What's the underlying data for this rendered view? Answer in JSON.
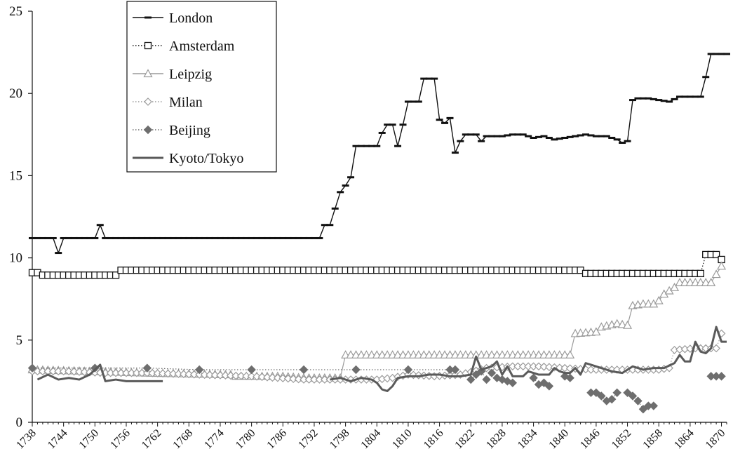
{
  "chart_data": {
    "type": "line",
    "title": "",
    "xlabel": "",
    "ylabel": "",
    "xlim": [
      1738,
      1871
    ],
    "ylim": [
      0,
      25
    ],
    "y_ticks": [
      0,
      5,
      10,
      15,
      20,
      25
    ],
    "x_ticks": [
      1738,
      1744,
      1750,
      1756,
      1762,
      1768,
      1774,
      1780,
      1786,
      1792,
      1798,
      1804,
      1810,
      1816,
      1822,
      1828,
      1834,
      1840,
      1846,
      1852,
      1858,
      1864,
      1870
    ],
    "grid": false,
    "legend_position": "top-left",
    "series": [
      {
        "name": "London",
        "color": "#111111",
        "dash": "solid",
        "marker": "dash",
        "data": [
          [
            1738,
            11.2
          ],
          [
            1742,
            11.2
          ],
          [
            1743,
            10.3
          ],
          [
            1744,
            11.2
          ],
          [
            1750,
            11.2
          ],
          [
            1751,
            12.0
          ],
          [
            1752,
            11.2
          ],
          [
            1770,
            11.2
          ],
          [
            1780,
            11.2
          ],
          [
            1790,
            11.2
          ],
          [
            1793,
            11.2
          ],
          [
            1794,
            12.0
          ],
          [
            1795,
            12.0
          ],
          [
            1796,
            13.0
          ],
          [
            1797,
            14.0
          ],
          [
            1798,
            14.4
          ],
          [
            1799,
            14.9
          ],
          [
            1800,
            16.8
          ],
          [
            1801,
            16.8
          ],
          [
            1802,
            16.8
          ],
          [
            1803,
            16.8
          ],
          [
            1804,
            16.8
          ],
          [
            1805,
            17.6
          ],
          [
            1806,
            18.1
          ],
          [
            1807,
            18.1
          ],
          [
            1808,
            16.8
          ],
          [
            1809,
            18.1
          ],
          [
            1810,
            19.5
          ],
          [
            1811,
            19.5
          ],
          [
            1812,
            19.5
          ],
          [
            1813,
            20.9
          ],
          [
            1814,
            20.9
          ],
          [
            1815,
            20.9
          ],
          [
            1816,
            18.4
          ],
          [
            1817,
            18.2
          ],
          [
            1818,
            18.5
          ],
          [
            1819,
            16.4
          ],
          [
            1820,
            17.1
          ],
          [
            1821,
            17.5
          ],
          [
            1822,
            17.5
          ],
          [
            1823,
            17.5
          ],
          [
            1824,
            17.1
          ],
          [
            1825,
            17.4
          ],
          [
            1826,
            17.4
          ],
          [
            1828,
            17.4
          ],
          [
            1830,
            17.5
          ],
          [
            1832,
            17.5
          ],
          [
            1834,
            17.3
          ],
          [
            1836,
            17.4
          ],
          [
            1838,
            17.2
          ],
          [
            1840,
            17.3
          ],
          [
            1842,
            17.4
          ],
          [
            1844,
            17.5
          ],
          [
            1846,
            17.4
          ],
          [
            1848,
            17.4
          ],
          [
            1850,
            17.2
          ],
          [
            1851,
            17.0
          ],
          [
            1852,
            17.1
          ],
          [
            1853,
            19.6
          ],
          [
            1854,
            19.7
          ],
          [
            1856,
            19.7
          ],
          [
            1858,
            19.6
          ],
          [
            1860,
            19.5
          ],
          [
            1862,
            19.8
          ],
          [
            1864,
            19.8
          ],
          [
            1866,
            19.8
          ],
          [
            1867,
            21.0
          ],
          [
            1868,
            22.4
          ],
          [
            1871,
            22.4
          ]
        ]
      },
      {
        "name": "Amsterdam",
        "color": "#111111",
        "dash": "dotted",
        "marker": "square-open",
        "data": [
          [
            1738,
            9.1
          ],
          [
            1739,
            9.1
          ],
          [
            1740,
            8.95
          ],
          [
            1747,
            8.95
          ],
          [
            1754,
            8.95
          ],
          [
            1755,
            9.25
          ],
          [
            1770,
            9.25
          ],
          [
            1790,
            9.25
          ],
          [
            1810,
            9.25
          ],
          [
            1830,
            9.25
          ],
          [
            1843,
            9.25
          ],
          [
            1844,
            9.05
          ],
          [
            1855,
            9.05
          ],
          [
            1866,
            9.05
          ],
          [
            1867,
            10.2
          ],
          [
            1869,
            10.2
          ],
          [
            1870,
            9.9
          ]
        ]
      },
      {
        "name": "Leipzig",
        "color": "#9a9a9a",
        "dash": "solid",
        "marker": "triangle-open",
        "data": [
          [
            1738,
            3.2
          ],
          [
            1750,
            3.1
          ],
          [
            1760,
            3.0
          ],
          [
            1776,
            2.9
          ],
          [
            1777,
            2.8
          ],
          [
            1786,
            2.8
          ],
          [
            1790,
            2.7
          ],
          [
            1797,
            2.7
          ],
          [
            1798,
            4.1
          ],
          [
            1810,
            4.1
          ],
          [
            1820,
            4.1
          ],
          [
            1830,
            4.1
          ],
          [
            1841,
            4.1
          ],
          [
            1842,
            5.4
          ],
          [
            1846,
            5.5
          ],
          [
            1847,
            5.8
          ],
          [
            1850,
            6.0
          ],
          [
            1852,
            5.9
          ],
          [
            1853,
            7.1
          ],
          [
            1855,
            7.2
          ],
          [
            1857,
            7.2
          ],
          [
            1858,
            7.4
          ],
          [
            1859,
            7.8
          ],
          [
            1861,
            8.2
          ],
          [
            1862,
            8.5
          ],
          [
            1867,
            8.5
          ],
          [
            1868,
            8.5
          ],
          [
            1869,
            9.0
          ],
          [
            1870,
            9.5
          ]
        ]
      },
      {
        "name": "Milan",
        "color": "#9a9a9a",
        "dash": "dotted",
        "marker": "diamond-open",
        "data": [
          [
            1738,
            3.1
          ],
          [
            1745,
            3.1
          ],
          [
            1752,
            3.0
          ],
          [
            1760,
            3.0
          ],
          [
            1770,
            2.9
          ],
          [
            1780,
            2.8
          ],
          [
            1790,
            2.6
          ],
          [
            1795,
            2.6
          ],
          [
            1800,
            2.6
          ],
          [
            1804,
            2.6
          ],
          [
            1807,
            2.7
          ],
          [
            1810,
            2.9
          ],
          [
            1815,
            2.8
          ],
          [
            1820,
            2.9
          ],
          [
            1825,
            3.3
          ],
          [
            1830,
            3.4
          ],
          [
            1835,
            3.4
          ],
          [
            1840,
            3.3
          ],
          [
            1845,
            3.2
          ],
          [
            1850,
            3.2
          ],
          [
            1855,
            3.2
          ],
          [
            1858,
            3.2
          ],
          [
            1860,
            3.3
          ],
          [
            1861,
            4.4
          ],
          [
            1865,
            4.5
          ],
          [
            1869,
            4.5
          ],
          [
            1870,
            5.4
          ]
        ]
      },
      {
        "name": "Beijing",
        "color": "#6e6e6e",
        "dash": "dotted",
        "marker": "diamond-filled",
        "data": [
          [
            1738,
            3.3
          ],
          [
            1750,
            3.3
          ],
          [
            1760,
            3.3
          ],
          [
            1770,
            3.2
          ],
          [
            1780,
            3.2
          ],
          [
            1790,
            3.2
          ],
          [
            1800,
            3.2
          ],
          [
            1810,
            3.2
          ],
          [
            1818,
            3.2
          ],
          [
            1819,
            3.2
          ],
          [
            null,
            null
          ],
          [
            1822,
            2.6
          ],
          [
            1823,
            2.9
          ],
          [
            1824,
            3.1
          ],
          [
            1825,
            2.6
          ],
          [
            1826,
            3.0
          ],
          [
            1827,
            2.7
          ],
          [
            1828,
            2.6
          ],
          [
            1829,
            2.5
          ],
          [
            1830,
            2.4
          ],
          [
            null,
            null
          ],
          [
            1834,
            2.7
          ],
          [
            1835,
            2.3
          ],
          [
            1836,
            2.4
          ],
          [
            1837,
            2.2
          ],
          [
            null,
            null
          ],
          [
            1840,
            2.8
          ],
          [
            1841,
            2.7
          ],
          [
            null,
            null
          ],
          [
            1845,
            1.8
          ],
          [
            1846,
            1.8
          ],
          [
            1847,
            1.6
          ],
          [
            1848,
            1.3
          ],
          [
            1849,
            1.4
          ],
          [
            1850,
            1.8
          ],
          [
            null,
            null
          ],
          [
            1852,
            1.8
          ],
          [
            1853,
            1.6
          ],
          [
            1854,
            1.3
          ],
          [
            1855,
            0.8
          ],
          [
            1856,
            1.0
          ],
          [
            1857,
            1.0
          ],
          [
            null,
            null
          ],
          [
            1868,
            2.8
          ],
          [
            1869,
            2.8
          ],
          [
            1870,
            2.8
          ]
        ]
      },
      {
        "name": "Kyoto/Tokyo",
        "color": "#5a5a5a",
        "dash": "solid",
        "marker": "none",
        "data": [
          [
            1739,
            2.6
          ],
          [
            1741,
            2.9
          ],
          [
            1743,
            2.6
          ],
          [
            1745,
            2.7
          ],
          [
            1747,
            2.6
          ],
          [
            1749,
            2.9
          ],
          [
            1751,
            3.5
          ],
          [
            1752,
            2.5
          ],
          [
            1754,
            2.6
          ],
          [
            1756,
            2.5
          ],
          [
            1758,
            2.5
          ],
          [
            1760,
            2.5
          ],
          [
            1763,
            2.5
          ],
          [
            null,
            null
          ],
          [
            1795,
            2.6
          ],
          [
            1797,
            2.7
          ],
          [
            1799,
            2.5
          ],
          [
            1801,
            2.7
          ],
          [
            1803,
            2.6
          ],
          [
            1804,
            2.4
          ],
          [
            1805,
            2.0
          ],
          [
            1806,
            1.9
          ],
          [
            1807,
            2.2
          ],
          [
            1808,
            2.7
          ],
          [
            1810,
            2.8
          ],
          [
            1812,
            2.8
          ],
          [
            1814,
            2.9
          ],
          [
            1816,
            2.9
          ],
          [
            1818,
            2.8
          ],
          [
            1820,
            2.8
          ],
          [
            1822,
            2.9
          ],
          [
            1823,
            4.0
          ],
          [
            1824,
            3.2
          ],
          [
            1826,
            3.4
          ],
          [
            1827,
            3.7
          ],
          [
            1828,
            2.9
          ],
          [
            1829,
            3.4
          ],
          [
            1830,
            2.8
          ],
          [
            1832,
            2.8
          ],
          [
            1833,
            3.1
          ],
          [
            1835,
            2.9
          ],
          [
            1837,
            2.9
          ],
          [
            1838,
            3.3
          ],
          [
            1839,
            3.1
          ],
          [
            1840,
            3.0
          ],
          [
            1841,
            3.0
          ],
          [
            1842,
            3.3
          ],
          [
            1843,
            2.9
          ],
          [
            1844,
            3.6
          ],
          [
            1845,
            3.5
          ],
          [
            1847,
            3.3
          ],
          [
            1849,
            3.1
          ],
          [
            1851,
            3.0
          ],
          [
            1853,
            3.4
          ],
          [
            1855,
            3.2
          ],
          [
            1857,
            3.3
          ],
          [
            1859,
            3.3
          ],
          [
            1861,
            3.6
          ],
          [
            1862,
            4.1
          ],
          [
            1863,
            3.7
          ],
          [
            1864,
            3.7
          ],
          [
            1865,
            4.9
          ],
          [
            1866,
            4.3
          ],
          [
            1867,
            4.2
          ],
          [
            1868,
            4.5
          ],
          [
            1869,
            5.8
          ],
          [
            1870,
            4.9
          ],
          [
            1871,
            4.9
          ]
        ]
      }
    ]
  }
}
